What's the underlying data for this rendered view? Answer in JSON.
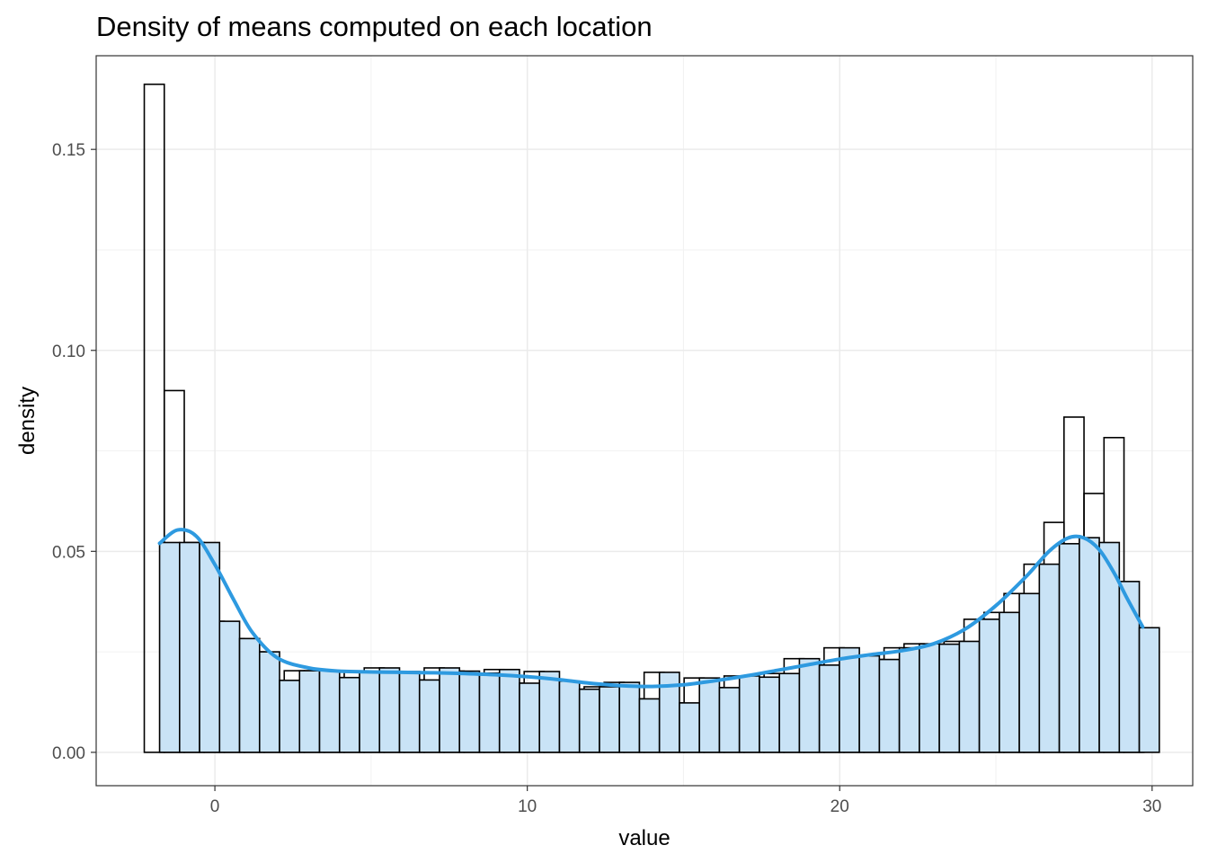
{
  "chart_data": {
    "type": "bar",
    "title": "Density of means computed on each location",
    "xlabel": "value",
    "ylabel": "density",
    "xlim": [
      -3.8,
      31.3
    ],
    "ylim": [
      -0.0083,
      0.1733
    ],
    "x_ticks": [
      0,
      10,
      20,
      30
    ],
    "x_tick_labels": [
      "0",
      "10",
      "20",
      "30"
    ],
    "y_ticks": [
      0,
      0.05,
      0.1,
      0.15
    ],
    "y_tick_labels": [
      "0.00",
      "0.05",
      "0.10",
      "0.15"
    ],
    "grid": true,
    "histogram": {
      "name": "histogram",
      "fill": "none",
      "stroke": "#000000",
      "bin_width": 0.64,
      "first_bin_left": -2.26,
      "values": [
        0.1662,
        0.09,
        0.0522,
        0.0326,
        0.0283,
        0.025,
        0.0179,
        0.0203,
        0.0203,
        0.0186,
        0.02,
        0.021,
        0.0201,
        0.018,
        0.021,
        0.0202,
        0.0197,
        0.0206,
        0.0172,
        0.0201,
        0.0177,
        0.0157,
        0.0163,
        0.0174,
        0.0133,
        0.0199,
        0.0123,
        0.0185,
        0.0161,
        0.019,
        0.0187,
        0.0196,
        0.0233,
        0.0217,
        0.026,
        0.024,
        0.0231,
        0.026,
        0.027,
        0.0269,
        0.0276,
        0.0331,
        0.0348,
        0.0395,
        0.0468,
        0.0572,
        0.0834,
        0.0644,
        0.0783,
        0.0245
      ]
    },
    "density_histogram": {
      "name": "density histogram",
      "fill": "#c9e3f6",
      "stroke": "#000000",
      "bin_width": 0.64,
      "first_bin_left": -1.77,
      "values": [
        0.0522,
        0.0522,
        0.0522,
        0.0326,
        0.0283,
        0.025,
        0.0179,
        0.0203,
        0.0203,
        0.0186,
        0.02,
        0.021,
        0.0201,
        0.018,
        0.021,
        0.0202,
        0.0197,
        0.0206,
        0.0172,
        0.0201,
        0.0177,
        0.0157,
        0.0163,
        0.0174,
        0.0133,
        0.0199,
        0.0123,
        0.0185,
        0.0161,
        0.019,
        0.0187,
        0.0196,
        0.0233,
        0.0217,
        0.026,
        0.024,
        0.0231,
        0.026,
        0.027,
        0.0269,
        0.0276,
        0.0331,
        0.0348,
        0.0395,
        0.0468,
        0.0519,
        0.0534,
        0.0522,
        0.0425,
        0.031
      ]
    },
    "density_curve": {
      "name": "density",
      "color": "#2e9ae0",
      "x": [
        -1.77,
        -1.2,
        -0.6,
        0.0,
        0.6,
        1.2,
        2.0,
        3.0,
        4.0,
        5.0,
        6.0,
        7.0,
        8.0,
        9.0,
        10.0,
        11.0,
        12.0,
        13.0,
        14.0,
        15.0,
        16.0,
        17.0,
        18.0,
        19.0,
        20.0,
        21.0,
        22.0,
        23.0,
        24.0,
        25.0,
        26.0,
        26.7,
        27.3,
        27.8,
        28.3,
        28.8,
        29.2,
        29.7
      ],
      "y": [
        0.052,
        0.0553,
        0.0538,
        0.0467,
        0.038,
        0.0298,
        0.0235,
        0.021,
        0.0202,
        0.02,
        0.0199,
        0.0198,
        0.0196,
        0.0193,
        0.0188,
        0.0181,
        0.0172,
        0.0166,
        0.0164,
        0.0168,
        0.0178,
        0.019,
        0.0204,
        0.0218,
        0.0232,
        0.0243,
        0.0253,
        0.027,
        0.0306,
        0.0365,
        0.044,
        0.05,
        0.0533,
        0.0534,
        0.0505,
        0.0444,
        0.0383,
        0.0312
      ]
    }
  }
}
